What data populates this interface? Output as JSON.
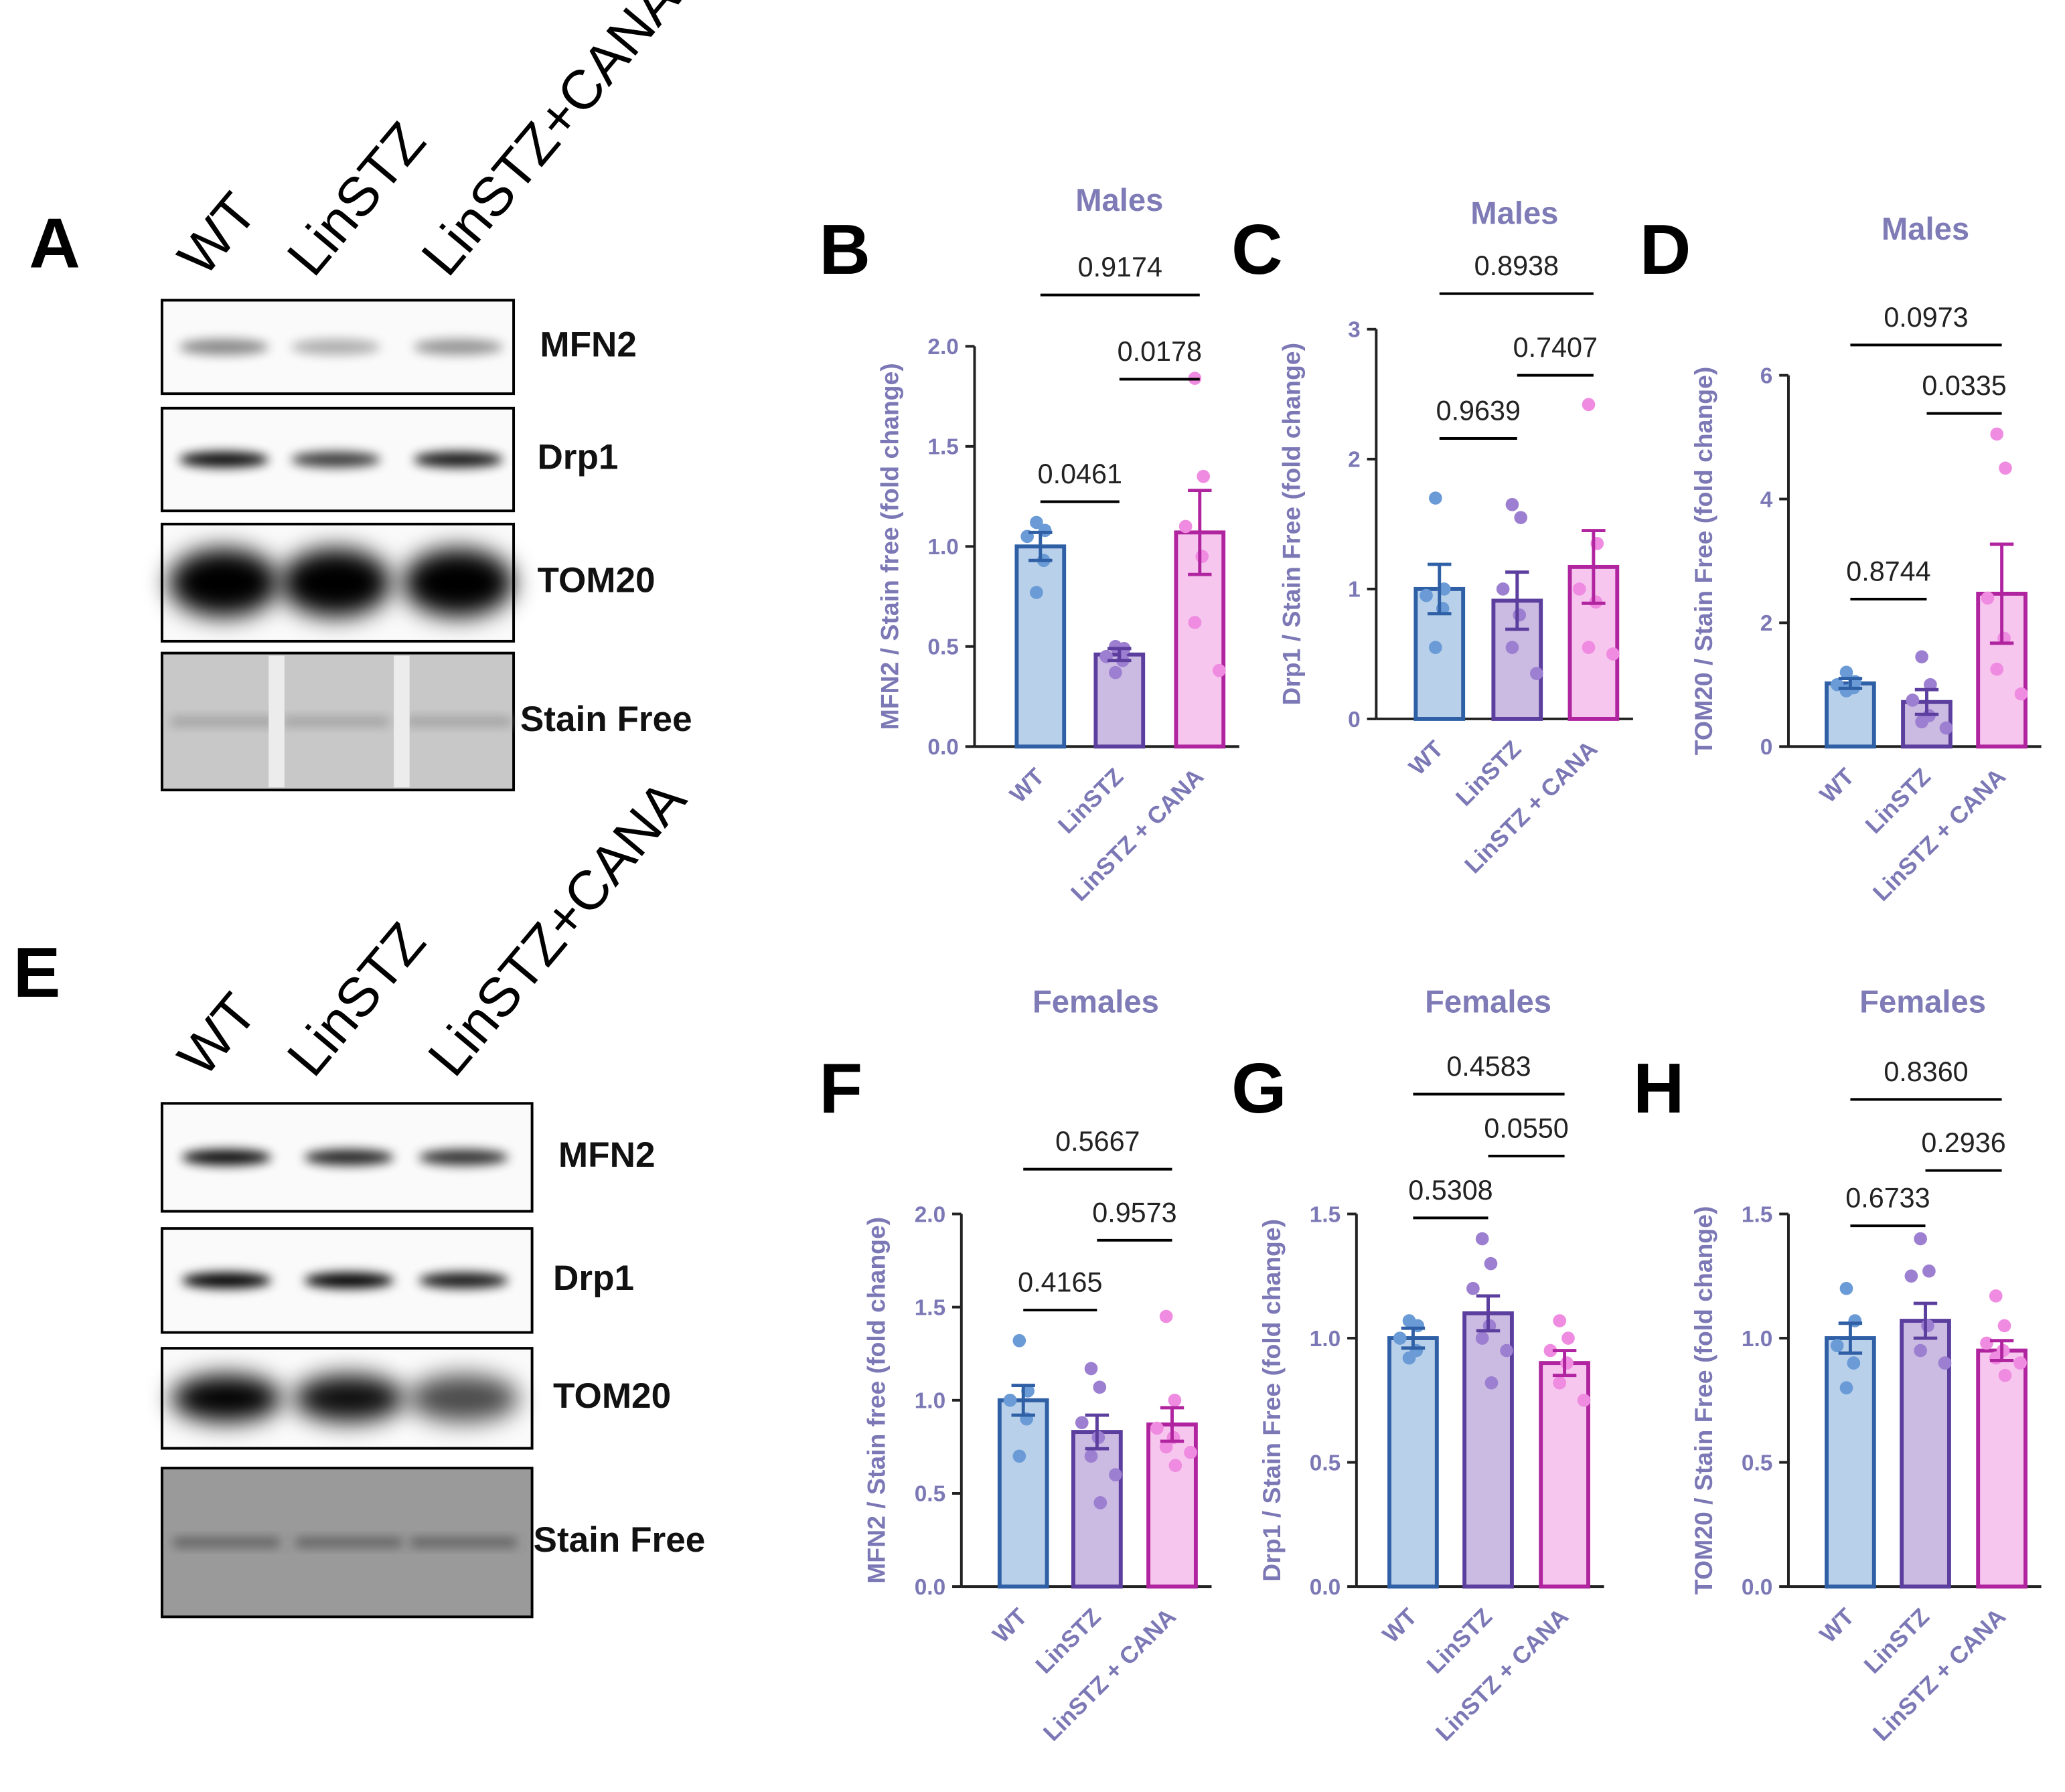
{
  "blots": [
    {
      "panel_label": "A",
      "lanes": [
        "WT",
        "LinSTZ",
        "LinSTZ+CANA"
      ],
      "bands": [
        "MFN2",
        "Drp1",
        "TOM20",
        "Stain Free"
      ]
    },
    {
      "panel_label": "E",
      "lanes": [
        "WT",
        "LinSTZ",
        "LinSTZ+CANA"
      ],
      "bands": [
        "MFN2",
        "Drp1",
        "TOM20",
        "Stain Free"
      ]
    }
  ],
  "chart_data": [
    {
      "type": "bar",
      "panel_label": "B",
      "title": "Males",
      "ylabel": "MFN2 / Stain free (fold change)",
      "categories": [
        "WT",
        "LinSTZ",
        "LinSTZ + CANA"
      ],
      "colors": [
        "#b8d0ea",
        "#cbbbe2",
        "#f6c6ef"
      ],
      "edge_colors": [
        "#2f5fa5",
        "#5b3e9e",
        "#b0259f"
      ],
      "point_colors": [
        "#6a9bd6",
        "#9c7fd0",
        "#ef8be0"
      ],
      "values": [
        1.0,
        0.46,
        1.07
      ],
      "errors": [
        0.07,
        0.03,
        0.21
      ],
      "points": [
        [
          1.12,
          1.08,
          1.05,
          0.93,
          0.77
        ],
        [
          0.5,
          0.49,
          0.45,
          0.43,
          0.37
        ],
        [
          1.84,
          1.35,
          1.1,
          0.95,
          0.62,
          0.38
        ]
      ],
      "p_values": [
        "0.0461",
        "0.0178",
        "0.9174"
      ],
      "ylim": [
        0,
        2
      ],
      "yticks": [
        {
          "value": 0,
          "label": "0.0"
        },
        {
          "value": 0.5,
          "label": "0.5"
        },
        {
          "value": 1,
          "label": "1.0"
        },
        {
          "value": 1.5,
          "label": "1.5"
        },
        {
          "value": 2,
          "label": "2.0"
        }
      ]
    },
    {
      "type": "bar",
      "panel_label": "C",
      "title": "Males",
      "ylabel": "Drp1 / Stain Free (fold change)",
      "categories": [
        "WT",
        "LinSTZ",
        "LinSTZ + CANA"
      ],
      "colors": [
        "#b8d0ea",
        "#cbbbe2",
        "#f6c6ef"
      ],
      "edge_colors": [
        "#2f5fa5",
        "#5b3e9e",
        "#b0259f"
      ],
      "point_colors": [
        "#6a9bd6",
        "#9c7fd0",
        "#ef8be0"
      ],
      "values": [
        1.0,
        0.91,
        1.17
      ],
      "errors": [
        0.19,
        0.22,
        0.28
      ],
      "points": [
        [
          1.7,
          1.0,
          0.95,
          0.85,
          0.55
        ],
        [
          1.65,
          1.55,
          1.0,
          0.8,
          0.55,
          0.35
        ],
        [
          2.42,
          1.35,
          1.0,
          0.9,
          0.55,
          0.5
        ]
      ],
      "p_values": [
        "0.9639",
        "0.7407",
        "0.8938"
      ],
      "ylim": [
        0,
        3
      ],
      "yticks": [
        0,
        1,
        2,
        3
      ]
    },
    {
      "type": "bar",
      "panel_label": "D",
      "title": "Males",
      "ylabel": "TOM20 / Stain Free (fold change)",
      "categories": [
        "WT",
        "LinSTZ",
        "LinSTZ + CANA"
      ],
      "colors": [
        "#b8d0ea",
        "#cbbbe2",
        "#f6c6ef"
      ],
      "edge_colors": [
        "#2f5fa5",
        "#5b3e9e",
        "#b0259f"
      ],
      "point_colors": [
        "#6a9bd6",
        "#9c7fd0",
        "#ef8be0"
      ],
      "values": [
        1.02,
        0.72,
        2.47
      ],
      "errors": [
        0.08,
        0.2,
        0.8
      ],
      "points": [
        [
          1.2,
          1.05,
          1.0,
          0.95,
          0.9
        ],
        [
          1.45,
          1.0,
          0.75,
          0.5,
          0.4,
          0.3
        ],
        [
          5.05,
          4.5,
          2.4,
          1.75,
          1.25,
          0.85
        ]
      ],
      "p_values": [
        "0.8744",
        "0.0335",
        "0.0973"
      ],
      "ylim": [
        0,
        6
      ],
      "yticks": [
        0,
        2,
        4,
        6
      ]
    },
    {
      "type": "bar",
      "panel_label": "F",
      "title": "Females",
      "ylabel": "MFN2 / Stain free (fold change)",
      "categories": [
        "WT",
        "LinSTZ",
        "LinSTZ + CANA"
      ],
      "colors": [
        "#b8d0ea",
        "#cbbbe2",
        "#f6c6ef"
      ],
      "edge_colors": [
        "#2f5fa5",
        "#5b3e9e",
        "#b0259f"
      ],
      "point_colors": [
        "#6a9bd6",
        "#9c7fd0",
        "#ef8be0"
      ],
      "values": [
        1.0,
        0.83,
        0.87
      ],
      "errors": [
        0.08,
        0.09,
        0.09
      ],
      "points": [
        [
          1.32,
          1.05,
          1.0,
          0.9,
          0.7
        ],
        [
          1.17,
          1.07,
          0.88,
          0.8,
          0.7,
          0.6,
          0.45
        ],
        [
          1.45,
          1.0,
          0.85,
          0.8,
          0.75,
          0.72,
          0.65
        ]
      ],
      "p_values": [
        "0.4165",
        "0.9573",
        "0.5667"
      ],
      "ylim": [
        0,
        2
      ],
      "yticks": [
        {
          "value": 0,
          "label": "0.0"
        },
        {
          "value": 0.5,
          "label": "0.5"
        },
        {
          "value": 1,
          "label": "1.0"
        },
        {
          "value": 1.5,
          "label": "1.5"
        },
        {
          "value": 2,
          "label": "2.0"
        }
      ]
    },
    {
      "type": "bar",
      "panel_label": "G",
      "title": "Females",
      "ylabel": "Drp1 / Stain Free (fold change)",
      "categories": [
        "WT",
        "LinSTZ",
        "LinSTZ + CANA"
      ],
      "colors": [
        "#b8d0ea",
        "#cbbbe2",
        "#f6c6ef"
      ],
      "edge_colors": [
        "#2f5fa5",
        "#5b3e9e",
        "#b0259f"
      ],
      "point_colors": [
        "#6a9bd6",
        "#9c7fd0",
        "#ef8be0"
      ],
      "values": [
        1.0,
        1.1,
        0.9
      ],
      "errors": [
        0.04,
        0.07,
        0.05
      ],
      "points": [
        [
          1.07,
          1.05,
          1.0,
          0.95,
          0.92
        ],
        [
          1.4,
          1.3,
          1.2,
          1.05,
          1.0,
          0.95,
          0.82
        ],
        [
          1.07,
          1.0,
          0.95,
          0.9,
          0.82,
          0.75
        ]
      ],
      "p_values": [
        "0.5308",
        "0.0550",
        "0.4583"
      ],
      "ylim": [
        0,
        1.5
      ],
      "yticks": [
        {
          "value": 0,
          "label": "0.0"
        },
        {
          "value": 0.5,
          "label": "0.5"
        },
        {
          "value": 1,
          "label": "1.0"
        },
        1.5
      ]
    },
    {
      "type": "bar",
      "panel_label": "H",
      "title": "Females",
      "ylabel": "TOM20 / Stain Free (fold change)",
      "categories": [
        "WT",
        "LinSTZ",
        "LinSTZ + CANA"
      ],
      "colors": [
        "#b8d0ea",
        "#cbbbe2",
        "#f6c6ef"
      ],
      "edge_colors": [
        "#2f5fa5",
        "#5b3e9e",
        "#b0259f"
      ],
      "point_colors": [
        "#6a9bd6",
        "#9c7fd0",
        "#ef8be0"
      ],
      "values": [
        1.0,
        1.07,
        0.95
      ],
      "errors": [
        0.06,
        0.07,
        0.04
      ],
      "points": [
        [
          1.2,
          1.07,
          0.97,
          0.9,
          0.8
        ],
        [
          1.4,
          1.27,
          1.25,
          1.05,
          0.95,
          0.9
        ],
        [
          1.17,
          1.05,
          0.98,
          0.95,
          0.92,
          0.9,
          0.85
        ]
      ],
      "p_values": [
        "0.6733",
        "0.2936",
        "0.8360"
      ],
      "ylim": [
        0,
        1.5
      ],
      "yticks": [
        {
          "value": 0,
          "label": "0.0"
        },
        {
          "value": 0.5,
          "label": "0.5"
        },
        {
          "value": 1,
          "label": "1.0"
        },
        1.5
      ]
    }
  ]
}
